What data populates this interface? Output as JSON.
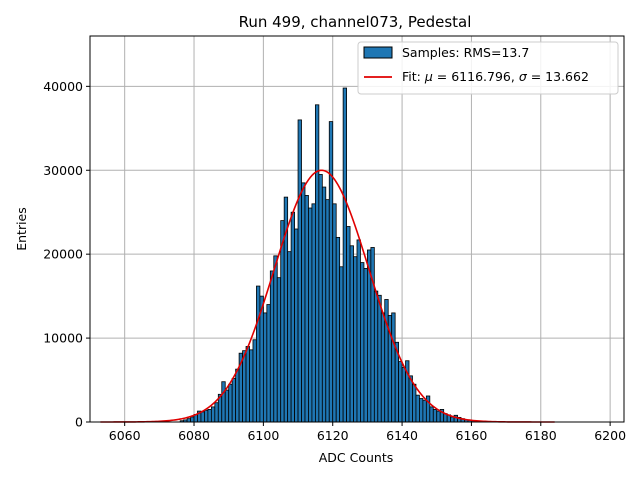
{
  "chart_data": {
    "type": "bar",
    "title": "Run 499, channel073, Pedestal",
    "xlabel": "ADC Counts",
    "ylabel": "Entries",
    "xlim": [
      6050,
      6204
    ],
    "ylim": [
      0,
      46000
    ],
    "xticks": [
      6060,
      6080,
      6100,
      6120,
      6140,
      6160,
      6180,
      6200
    ],
    "yticks": [
      0,
      10000,
      20000,
      30000,
      40000
    ],
    "grid": true,
    "legend_position": "top-right",
    "colors": {
      "bars": "#1f77b4",
      "bar_edge": "#000000",
      "fit": "#e00000"
    },
    "histogram": {
      "name": "Samples: RMS=13.7",
      "bins": [
        [
          6076,
          150
        ],
        [
          6077,
          250
        ],
        [
          6078,
          400
        ],
        [
          6079,
          600
        ],
        [
          6080,
          900
        ],
        [
          6081,
          1300
        ],
        [
          6082,
          1200
        ],
        [
          6083,
          1400
        ],
        [
          6084,
          1500
        ],
        [
          6085,
          1800
        ],
        [
          6086,
          2300
        ],
        [
          6087,
          3300
        ],
        [
          6088,
          4800
        ],
        [
          6089,
          3800
        ],
        [
          6090,
          4500
        ],
        [
          6091,
          5200
        ],
        [
          6092,
          6300
        ],
        [
          6093,
          8200
        ],
        [
          6094,
          8500
        ],
        [
          6095,
          9000
        ],
        [
          6096,
          8600
        ],
        [
          6097,
          9800
        ],
        [
          6098,
          16200
        ],
        [
          6099,
          15000
        ],
        [
          6100,
          13000
        ],
        [
          6101,
          14000
        ],
        [
          6102,
          18000
        ],
        [
          6103,
          19800
        ],
        [
          6104,
          17200
        ],
        [
          6105,
          24000
        ],
        [
          6106,
          26800
        ],
        [
          6107,
          20300
        ],
        [
          6108,
          25000
        ],
        [
          6109,
          23000
        ],
        [
          6110,
          36000
        ],
        [
          6111,
          28500
        ],
        [
          6112,
          27000
        ],
        [
          6113,
          25500
        ],
        [
          6114,
          26000
        ],
        [
          6115,
          37800
        ],
        [
          6116,
          29500
        ],
        [
          6117,
          28000
        ],
        [
          6118,
          26500
        ],
        [
          6119,
          35800
        ],
        [
          6120,
          26000
        ],
        [
          6121,
          22000
        ],
        [
          6122,
          18500
        ],
        [
          6123,
          39800
        ],
        [
          6124,
          23300
        ],
        [
          6125,
          21000
        ],
        [
          6126,
          19700
        ],
        [
          6127,
          21700
        ],
        [
          6128,
          19000
        ],
        [
          6129,
          18300
        ],
        [
          6130,
          20500
        ],
        [
          6131,
          20800
        ],
        [
          6132,
          15600
        ],
        [
          6133,
          15100
        ],
        [
          6134,
          13000
        ],
        [
          6135,
          14600
        ],
        [
          6136,
          12700
        ],
        [
          6137,
          13000
        ],
        [
          6138,
          9500
        ],
        [
          6139,
          7200
        ],
        [
          6140,
          6500
        ],
        [
          6141,
          7300
        ],
        [
          6142,
          5500
        ],
        [
          6143,
          4500
        ],
        [
          6144,
          3200
        ],
        [
          6145,
          2800
        ],
        [
          6146,
          2600
        ],
        [
          6147,
          3100
        ],
        [
          6148,
          1800
        ],
        [
          6149,
          1500
        ],
        [
          6150,
          1300
        ],
        [
          6151,
          1500
        ],
        [
          6152,
          1000
        ],
        [
          6153,
          850
        ],
        [
          6154,
          600
        ],
        [
          6155,
          800
        ],
        [
          6156,
          550
        ],
        [
          6157,
          400
        ],
        [
          6158,
          250
        ],
        [
          6159,
          200
        ],
        [
          6160,
          150
        ]
      ]
    },
    "fit": {
      "name": "Fit: μ = 6116.796, σ = 13.662",
      "label_prefix": "Fit: ",
      "mu_symbol": "μ",
      "mu_text": " = 6116.796, ",
      "sigma_symbol": "σ",
      "sigma_text": " = 13.662",
      "mu": 6116.796,
      "sigma": 13.662,
      "amplitude": 30000,
      "x_range": [
        6053,
        6184
      ]
    }
  }
}
